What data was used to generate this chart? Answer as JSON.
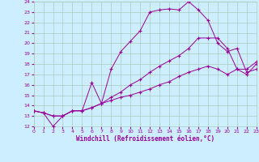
{
  "xlabel": "Windchill (Refroidissement éolien,°C)",
  "bg_color": "#cceeff",
  "grid_color": "#aaccbb",
  "line_color": "#990099",
  "xlim": [
    0,
    23
  ],
  "ylim": [
    12,
    24
  ],
  "xticks": [
    0,
    1,
    2,
    3,
    4,
    5,
    6,
    7,
    8,
    9,
    10,
    11,
    12,
    13,
    14,
    15,
    16,
    17,
    18,
    19,
    20,
    21,
    22,
    23
  ],
  "yticks": [
    12,
    13,
    14,
    15,
    16,
    17,
    18,
    19,
    20,
    21,
    22,
    23,
    24
  ],
  "series": [
    [
      13.5,
      13.3,
      12.0,
      13.0,
      13.5,
      13.5,
      16.2,
      14.2,
      17.5,
      19.2,
      20.2,
      21.2,
      23.0,
      23.2,
      23.3,
      23.2,
      24.0,
      23.2,
      22.2,
      20.0,
      19.2,
      19.5,
      17.2,
      17.5
    ],
    [
      13.5,
      13.3,
      13.0,
      13.0,
      13.5,
      13.5,
      13.8,
      14.2,
      14.8,
      15.3,
      16.0,
      16.5,
      17.2,
      17.8,
      18.3,
      18.8,
      19.5,
      20.5,
      20.5,
      20.5,
      19.5,
      17.5,
      17.5,
      18.2
    ],
    [
      13.5,
      13.3,
      13.0,
      13.0,
      13.5,
      13.5,
      13.8,
      14.2,
      14.5,
      14.8,
      15.0,
      15.3,
      15.6,
      16.0,
      16.3,
      16.8,
      17.2,
      17.5,
      17.8,
      17.5,
      17.0,
      17.5,
      17.0,
      18.0
    ]
  ]
}
